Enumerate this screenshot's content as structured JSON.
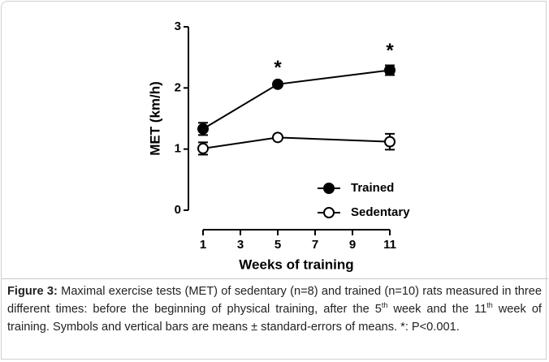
{
  "chart_data": {
    "type": "line",
    "ylabel": "MET (km/h)",
    "xlabel": "Weeks of training",
    "x": [
      1,
      5,
      11
    ],
    "xlim": [
      1,
      11
    ],
    "xticks": [
      1,
      3,
      5,
      7,
      9,
      11
    ],
    "ylim": [
      0,
      3
    ],
    "yticks": [
      0,
      1,
      2,
      3
    ],
    "series": [
      {
        "name": "Trained",
        "color": "#000000",
        "marker": "filled",
        "values": [
          1.33,
          2.06,
          2.29
        ],
        "errors": [
          0.1,
          0.03,
          0.08
        ]
      },
      {
        "name": "Sedentary",
        "color": "#000000",
        "marker": "open",
        "values": [
          1.01,
          1.19,
          1.12
        ],
        "errors": [
          0.1,
          0.03,
          0.13
        ]
      }
    ],
    "annotations": [
      {
        "text": "*",
        "x": 5,
        "series": 0
      },
      {
        "text": "*",
        "x": 11,
        "series": 0
      }
    ]
  },
  "caption": {
    "label": "Figure 3:",
    "parts": [
      "Maximal exercise tests (MET) of sedentary (n=8) and trained (n=10) rats measured in three different times: before the beginning of physical training, after the 5",
      "th",
      " week and the 11",
      "th",
      " week of training. Symbols and vertical bars are means ± standard-errors of means. *: P<0.001."
    ]
  }
}
